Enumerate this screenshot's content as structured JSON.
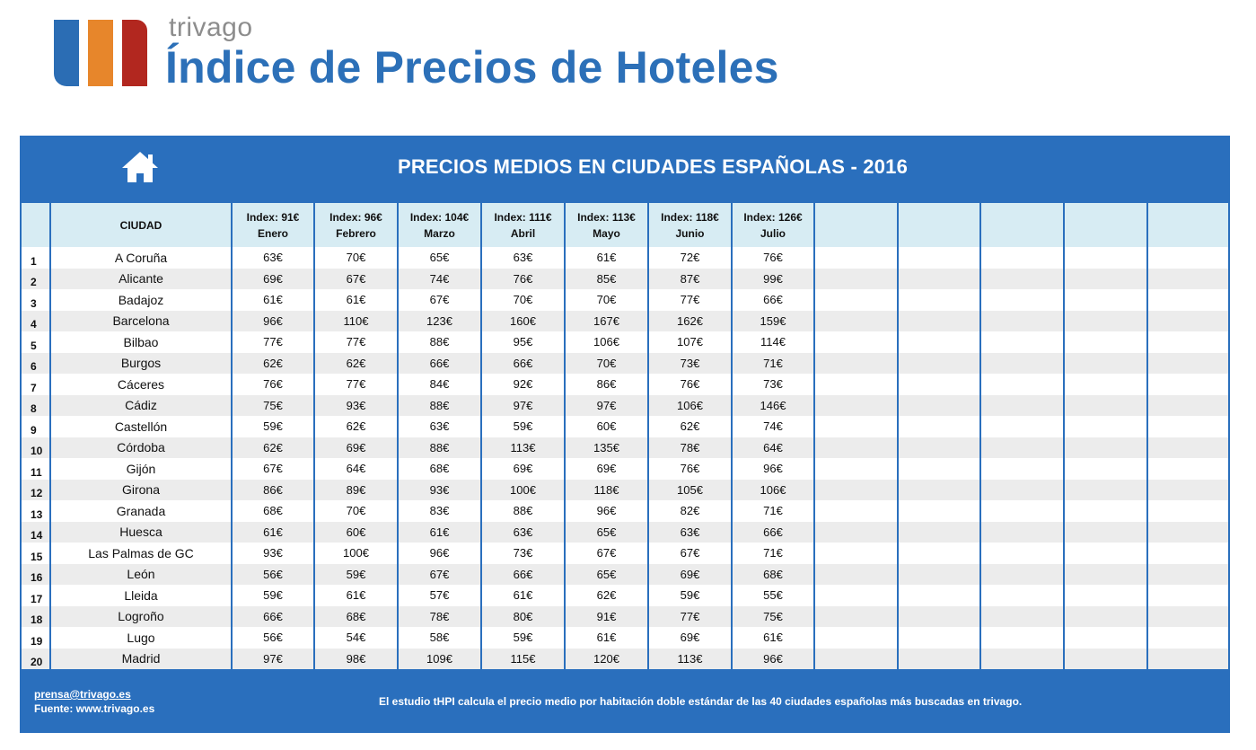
{
  "header": {
    "brand": "trivago",
    "title": "Índice de Precios de Hoteles",
    "logo_colors": [
      "#2b6db4",
      "#e7862b",
      "#b2271f"
    ]
  },
  "table": {
    "title": "PRECIOS MEDIOS EN CIUDADES ESPAÑOLAS - 2016",
    "home_icon": "home-icon",
    "city_header": "CIUDAD",
    "months": [
      {
        "index": "Index: 91€",
        "month": "Enero"
      },
      {
        "index": "Index: 96€",
        "month": "Febrero"
      },
      {
        "index": "Index: 104€",
        "month": "Marzo"
      },
      {
        "index": "Index: 111€",
        "month": "Abril"
      },
      {
        "index": "Index: 113€",
        "month": "Mayo"
      },
      {
        "index": "Index: 118€",
        "month": "Junio"
      },
      {
        "index": "Index: 126€",
        "month": "Julio"
      }
    ],
    "empty_columns": 5,
    "rows": [
      {
        "n": "1",
        "city": "A Coruña",
        "prices": [
          "63€",
          "70€",
          "65€",
          "63€",
          "61€",
          "72€",
          "76€"
        ]
      },
      {
        "n": "2",
        "city": "Alicante",
        "prices": [
          "69€",
          "67€",
          "74€",
          "76€",
          "85€",
          "87€",
          "99€"
        ]
      },
      {
        "n": "3",
        "city": "Badajoz",
        "prices": [
          "61€",
          "61€",
          "67€",
          "70€",
          "70€",
          "77€",
          "66€"
        ]
      },
      {
        "n": "4",
        "city": "Barcelona",
        "prices": [
          "96€",
          "110€",
          "123€",
          "160€",
          "167€",
          "162€",
          "159€"
        ]
      },
      {
        "n": "5",
        "city": "Bilbao",
        "prices": [
          "77€",
          "77€",
          "88€",
          "95€",
          "106€",
          "107€",
          "114€"
        ]
      },
      {
        "n": "6",
        "city": "Burgos",
        "prices": [
          "62€",
          "62€",
          "66€",
          "66€",
          "70€",
          "73€",
          "71€"
        ]
      },
      {
        "n": "7",
        "city": "Cáceres",
        "prices": [
          "76€",
          "77€",
          "84€",
          "92€",
          "86€",
          "76€",
          "73€"
        ]
      },
      {
        "n": "8",
        "city": "Cádiz",
        "prices": [
          "75€",
          "93€",
          "88€",
          "97€",
          "97€",
          "106€",
          "146€"
        ]
      },
      {
        "n": "9",
        "city": "Castellón",
        "prices": [
          "59€",
          "62€",
          "63€",
          "59€",
          "60€",
          "62€",
          "74€"
        ]
      },
      {
        "n": "10",
        "city": "Córdoba",
        "prices": [
          "62€",
          "69€",
          "88€",
          "113€",
          "135€",
          "78€",
          "64€"
        ]
      },
      {
        "n": "11",
        "city": "Gijón",
        "prices": [
          "67€",
          "64€",
          "68€",
          "69€",
          "69€",
          "76€",
          "96€"
        ]
      },
      {
        "n": "12",
        "city": "Girona",
        "prices": [
          "86€",
          "89€",
          "93€",
          "100€",
          "118€",
          "105€",
          "106€"
        ]
      },
      {
        "n": "13",
        "city": "Granada",
        "prices": [
          "68€",
          "70€",
          "83€",
          "88€",
          "96€",
          "82€",
          "71€"
        ]
      },
      {
        "n": "14",
        "city": "Huesca",
        "prices": [
          "61€",
          "60€",
          "61€",
          "63€",
          "65€",
          "63€",
          "66€"
        ]
      },
      {
        "n": "15",
        "city": "Las Palmas de GC",
        "prices": [
          "93€",
          "100€",
          "96€",
          "73€",
          "67€",
          "67€",
          "71€"
        ]
      },
      {
        "n": "16",
        "city": "León",
        "prices": [
          "56€",
          "59€",
          "67€",
          "66€",
          "65€",
          "69€",
          "68€"
        ]
      },
      {
        "n": "17",
        "city": "Lleida",
        "prices": [
          "59€",
          "61€",
          "57€",
          "61€",
          "62€",
          "59€",
          "55€"
        ]
      },
      {
        "n": "18",
        "city": "Logroño",
        "prices": [
          "66€",
          "68€",
          "78€",
          "80€",
          "91€",
          "77€",
          "75€"
        ]
      },
      {
        "n": "19",
        "city": "Lugo",
        "prices": [
          "56€",
          "54€",
          "58€",
          "59€",
          "61€",
          "69€",
          "61€"
        ]
      },
      {
        "n": "20",
        "city": "Madrid",
        "prices": [
          "97€",
          "98€",
          "109€",
          "115€",
          "120€",
          "113€",
          "96€"
        ]
      }
    ]
  },
  "footer": {
    "email": "prensa@trivago.es",
    "source": "Fuente: www.trivago.es",
    "note": "El estudio tHPI calcula el precio medio por habitación doble estándar de las 40 ciudades españolas más buscadas en trivago."
  }
}
